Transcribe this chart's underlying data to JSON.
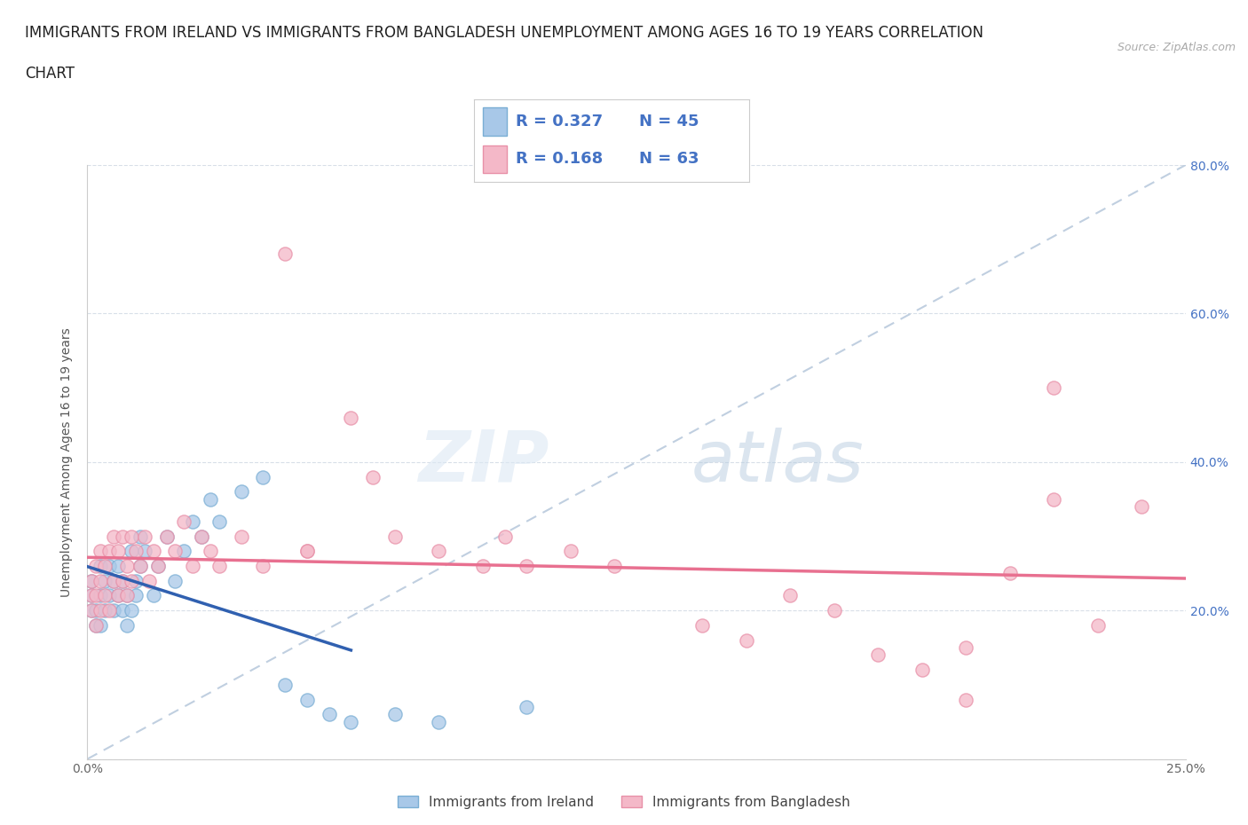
{
  "title_line1": "IMMIGRANTS FROM IRELAND VS IMMIGRANTS FROM BANGLADESH UNEMPLOYMENT AMONG AGES 16 TO 19 YEARS CORRELATION",
  "title_line2": "CHART",
  "source_text": "Source: ZipAtlas.com",
  "ylabel": "Unemployment Among Ages 16 to 19 years",
  "xlim": [
    0.0,
    0.25
  ],
  "ylim": [
    0.0,
    0.8
  ],
  "x_ticks": [
    0.0,
    0.05,
    0.1,
    0.15,
    0.2,
    0.25
  ],
  "x_tick_labels": [
    "0.0%",
    "",
    "",
    "",
    "",
    "25.0%"
  ],
  "y_ticks": [
    0.0,
    0.2,
    0.4,
    0.6,
    0.8
  ],
  "y_tick_labels_right": [
    "",
    "20.0%",
    "40.0%",
    "60.0%",
    "80.0%"
  ],
  "ireland_color": "#a8c8e8",
  "ireland_edge_color": "#7aaed4",
  "bangladesh_color": "#f4b8c8",
  "bangladesh_edge_color": "#e890a8",
  "ireland_R": 0.327,
  "ireland_N": 45,
  "bangladesh_R": 0.168,
  "bangladesh_N": 63,
  "watermark_zip": "ZIP",
  "watermark_atlas": "atlas",
  "ireland_line_color": "#3060b0",
  "bangladesh_line_color": "#e87090",
  "diagonal_color": "#c0cfe0",
  "legend_text_color": "#4472c4",
  "background_color": "#ffffff",
  "grid_color": "#d8dfe8",
  "ireland_scatter_x": [
    0.001,
    0.001,
    0.001,
    0.002,
    0.002,
    0.003,
    0.003,
    0.003,
    0.004,
    0.004,
    0.005,
    0.005,
    0.006,
    0.006,
    0.007,
    0.007,
    0.008,
    0.008,
    0.009,
    0.009,
    0.01,
    0.01,
    0.011,
    0.011,
    0.012,
    0.012,
    0.013,
    0.015,
    0.016,
    0.018,
    0.02,
    0.022,
    0.024,
    0.026,
    0.028,
    0.03,
    0.035,
    0.04,
    0.045,
    0.05,
    0.055,
    0.06,
    0.07,
    0.08,
    0.1
  ],
  "ireland_scatter_y": [
    0.2,
    0.22,
    0.24,
    0.18,
    0.2,
    0.18,
    0.22,
    0.26,
    0.2,
    0.24,
    0.22,
    0.26,
    0.2,
    0.24,
    0.22,
    0.26,
    0.2,
    0.24,
    0.18,
    0.22,
    0.2,
    0.28,
    0.22,
    0.24,
    0.26,
    0.3,
    0.28,
    0.22,
    0.26,
    0.3,
    0.24,
    0.28,
    0.32,
    0.3,
    0.35,
    0.32,
    0.36,
    0.38,
    0.1,
    0.08,
    0.06,
    0.05,
    0.06,
    0.05,
    0.07
  ],
  "bangladesh_scatter_x": [
    0.001,
    0.001,
    0.001,
    0.002,
    0.002,
    0.002,
    0.003,
    0.003,
    0.003,
    0.004,
    0.004,
    0.005,
    0.005,
    0.006,
    0.006,
    0.007,
    0.007,
    0.008,
    0.008,
    0.009,
    0.009,
    0.01,
    0.01,
    0.011,
    0.012,
    0.013,
    0.014,
    0.015,
    0.016,
    0.018,
    0.02,
    0.022,
    0.024,
    0.026,
    0.028,
    0.03,
    0.035,
    0.04,
    0.045,
    0.05,
    0.06,
    0.065,
    0.07,
    0.08,
    0.09,
    0.095,
    0.1,
    0.11,
    0.12,
    0.14,
    0.16,
    0.18,
    0.2,
    0.2,
    0.21,
    0.22,
    0.22,
    0.23,
    0.24,
    0.15,
    0.17,
    0.19,
    0.05
  ],
  "bangladesh_scatter_y": [
    0.2,
    0.22,
    0.24,
    0.18,
    0.22,
    0.26,
    0.2,
    0.24,
    0.28,
    0.22,
    0.26,
    0.2,
    0.28,
    0.24,
    0.3,
    0.22,
    0.28,
    0.24,
    0.3,
    0.22,
    0.26,
    0.24,
    0.3,
    0.28,
    0.26,
    0.3,
    0.24,
    0.28,
    0.26,
    0.3,
    0.28,
    0.32,
    0.26,
    0.3,
    0.28,
    0.26,
    0.3,
    0.26,
    0.68,
    0.28,
    0.46,
    0.38,
    0.3,
    0.28,
    0.26,
    0.3,
    0.26,
    0.28,
    0.26,
    0.18,
    0.22,
    0.14,
    0.08,
    0.15,
    0.25,
    0.35,
    0.5,
    0.18,
    0.34,
    0.16,
    0.2,
    0.12,
    0.28
  ],
  "title_fontsize": 12,
  "axis_label_fontsize": 10,
  "tick_fontsize": 10,
  "legend_fontsize": 13
}
